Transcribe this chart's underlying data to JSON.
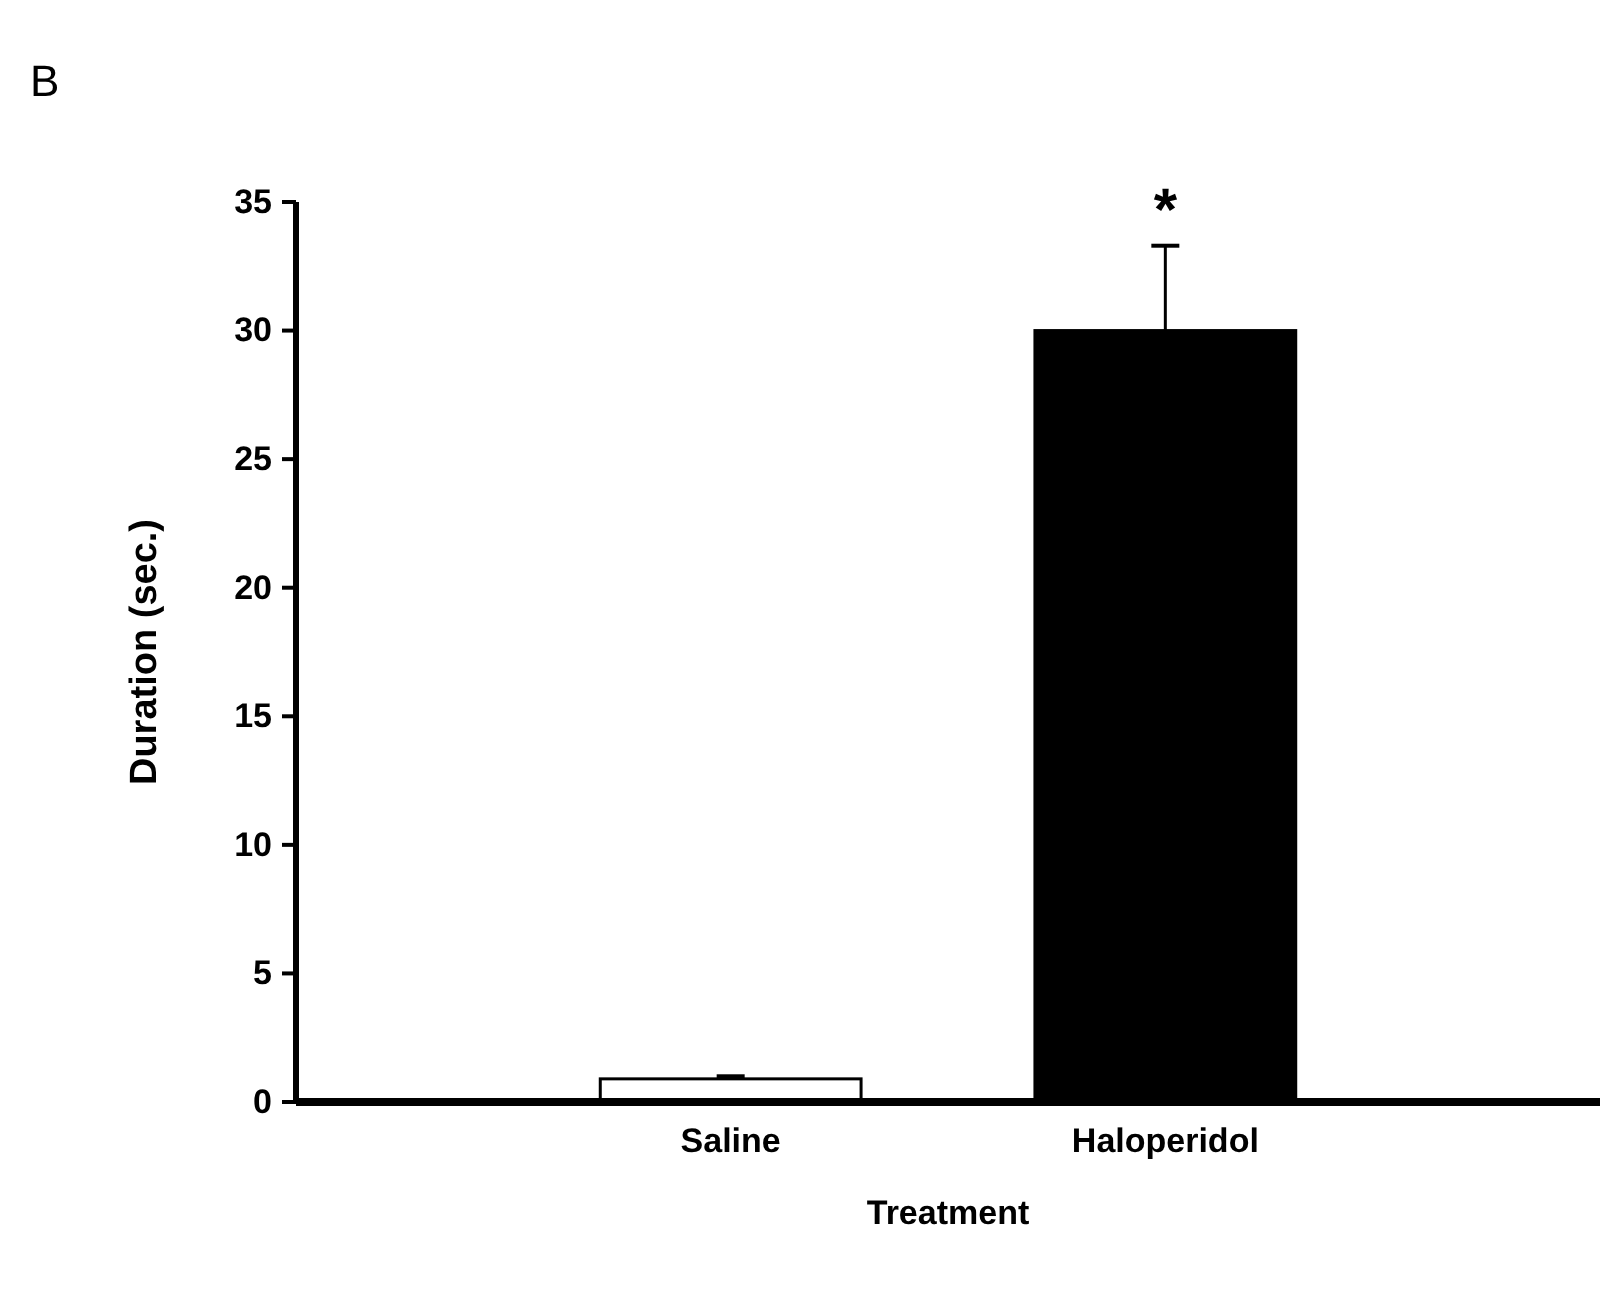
{
  "chart_data": {
    "type": "bar",
    "xlabel": "Treatment",
    "ylabel": "Duration (sec.)",
    "categories": [
      "Saline",
      "Haloperidol"
    ],
    "values": [
      0.9,
      30
    ],
    "colors": [
      "#ffffff",
      "#000000"
    ],
    "errors": [
      0.1,
      3.3
    ],
    "ylim": [
      0,
      35
    ],
    "yticks": [
      0,
      5,
      10,
      15,
      20,
      25,
      30,
      35
    ],
    "grid": false,
    "annotations": [
      "B",
      {
        "text": "*",
        "x": "Haloperidol",
        "y": 33.3
      }
    ]
  }
}
